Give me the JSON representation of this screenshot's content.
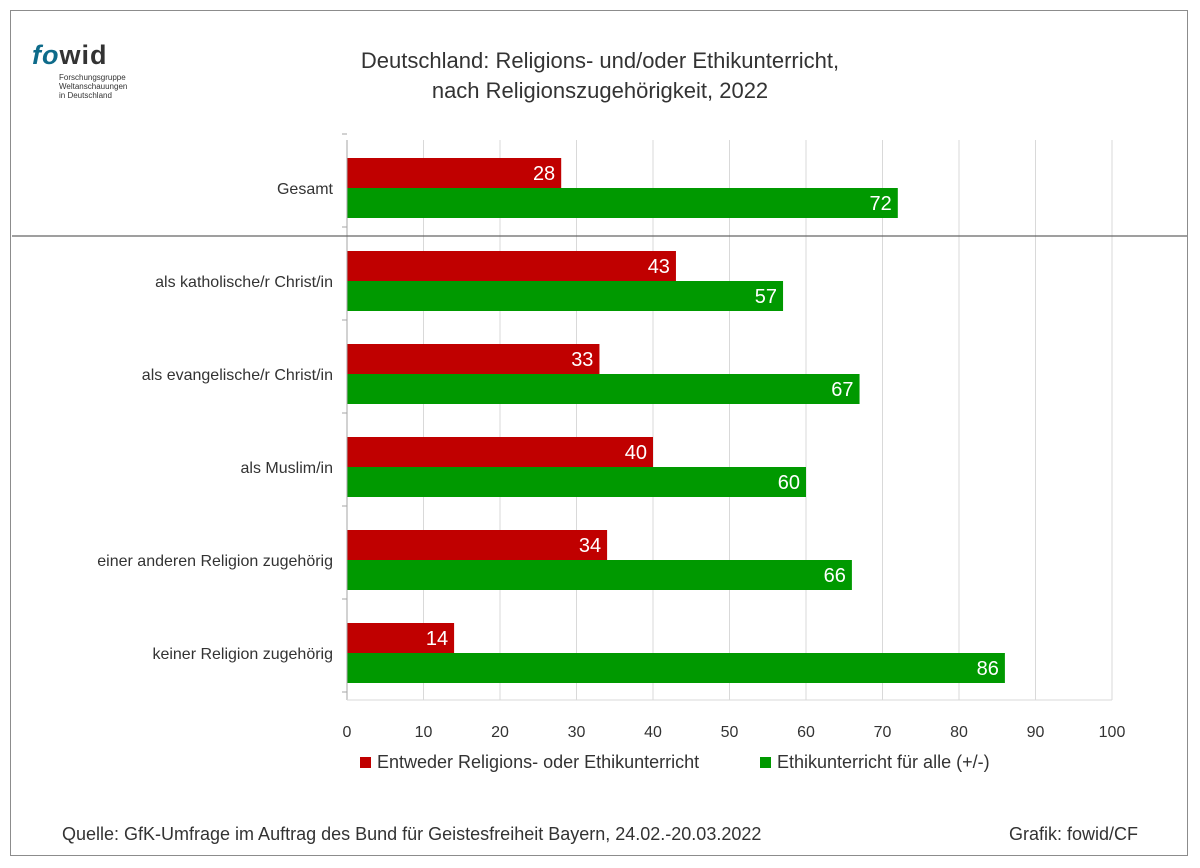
{
  "logo": {
    "word_a": "fo",
    "word_b": "wid",
    "line1": "Forschungsgruppe",
    "line2": "Weltanschauungen",
    "line3": "in Deutschland"
  },
  "footer": {
    "source": "Quelle: GfK-Umfrage im Auftrag des Bund für Geistesfreiheit Bayern, 24.02.-20.03.2022",
    "credit": "Grafik: fowid/CF"
  },
  "chart_data": {
    "type": "bar",
    "orientation": "horizontal",
    "title_line1": "Deutschland: Religions- und/oder Ethikunterricht,",
    "title_line2": "nach Religionszugehörigkeit, 2022",
    "categories": [
      "Gesamt",
      "als katholische/r Christ/in",
      "als evangelische/r Christ/in",
      "als  Muslim/in",
      "einer anderen Religion zugehörig",
      "keiner Religion zugehörig"
    ],
    "series": [
      {
        "name": "Entweder Religions- oder Ethikunterricht",
        "color": "#c00000",
        "values": [
          28,
          43,
          33,
          40,
          34,
          14
        ]
      },
      {
        "name": "Ethikunterricht für alle (+/-)",
        "color": "#009900",
        "values": [
          72,
          57,
          67,
          60,
          66,
          86
        ]
      }
    ],
    "xlim": [
      0,
      100
    ],
    "xticks": [
      0,
      10,
      20,
      30,
      40,
      50,
      60,
      70,
      80,
      90,
      100
    ],
    "grid": true,
    "legend_position": "bottom",
    "data_labels": true
  }
}
